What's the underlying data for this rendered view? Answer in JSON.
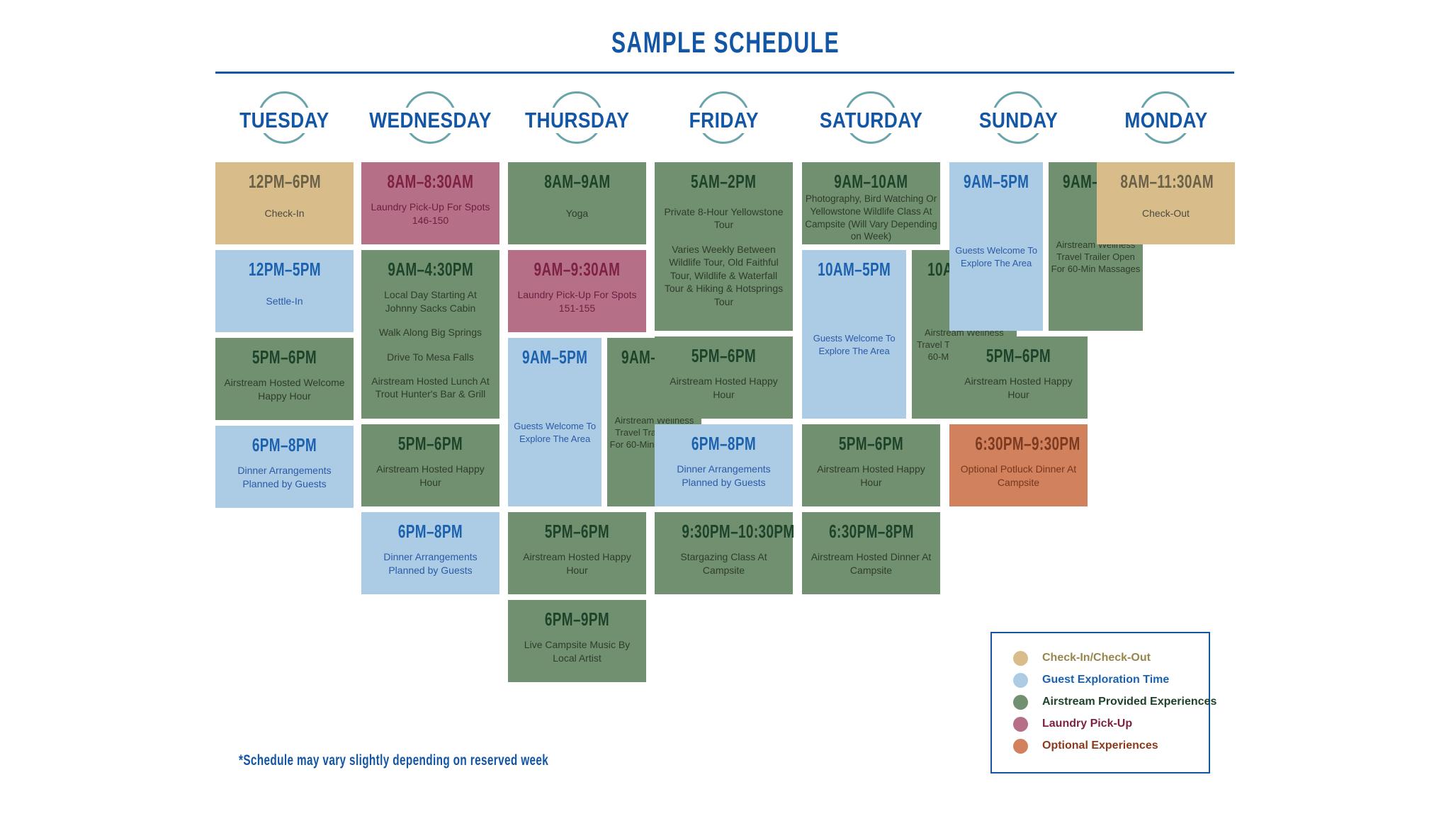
{
  "title": "SAMPLE SCHEDULE",
  "footnote": "*Schedule may vary slightly depending on reserved week",
  "colors": {
    "accent": "#1356a5",
    "day_circle": "#68a4a9",
    "types": {
      "checkin": {
        "bg": "#d8bc8a",
        "time": "#6b6148",
        "body": "#4c4a42",
        "legend": "#97864e"
      },
      "guest": {
        "bg": "#accce6",
        "time": "#1c61ae",
        "body": "#2b5aa7",
        "legend": "#1c61ae"
      },
      "airstream": {
        "bg": "#71906f",
        "time": "#1d432a",
        "body": "#2e3d2d",
        "legend": "#1d432a"
      },
      "laundry": {
        "bg": "#b57087",
        "time": "#7d2145",
        "body": "#6d1e41",
        "legend": "#7d2145"
      },
      "optional": {
        "bg": "#d2815d",
        "time": "#7c3a20",
        "body": "#74371f",
        "legend": "#8a3a1e"
      }
    }
  },
  "legend": {
    "items": [
      {
        "type": "checkin",
        "label": "Check-In/Check-Out"
      },
      {
        "type": "guest",
        "label": "Guest Exploration Time"
      },
      {
        "type": "airstream",
        "label": "Airstream Provided Experiences"
      },
      {
        "type": "laundry",
        "label": "Laundry Pick-Up"
      },
      {
        "type": "optional",
        "label": "Optional Experiences"
      }
    ]
  },
  "days": [
    {
      "label": "TUESDAY",
      "blocks": [
        {
          "time": "12PM–6PM",
          "type": "checkin",
          "size": "s",
          "body": [
            "Check-In"
          ]
        },
        {
          "time": "12PM–5PM",
          "type": "guest",
          "size": "s",
          "body": [
            "Settle-In"
          ]
        },
        {
          "time": "5PM–6PM",
          "type": "airstream",
          "size": "s",
          "body": [
            "Airstream Hosted Welcome Happy Hour"
          ]
        },
        {
          "time": "6PM–8PM",
          "type": "guest",
          "size": "s",
          "body": [
            "Dinner Arrangements Planned by Guests"
          ]
        }
      ]
    },
    {
      "label": "WEDNESDAY",
      "blocks": [
        {
          "time": "8AM–8:30AM",
          "type": "laundry",
          "size": "s",
          "body": [
            "Laundry Pick-Up For Spots 146-150"
          ]
        },
        {
          "time": "9AM–4:30PM",
          "type": "airstream",
          "size": "l",
          "body": [
            "Local Day Starting At Johnny Sacks Cabin",
            "Walk Along Big Springs",
            "Drive To Mesa Falls",
            "Airstream Hosted Lunch At Trout Hunter's Bar & Grill"
          ]
        },
        {
          "time": "5PM–6PM",
          "type": "airstream",
          "size": "s",
          "body": [
            "Airstream Hosted Happy Hour"
          ]
        },
        {
          "time": "6PM–8PM",
          "type": "guest",
          "size": "s",
          "body": [
            "Dinner Arrangements Planned by Guests"
          ]
        }
      ]
    },
    {
      "label": "THURSDAY",
      "blocks": [
        {
          "time": "8AM–9AM",
          "type": "airstream",
          "size": "s",
          "body": [
            "Yoga"
          ]
        },
        {
          "time": "9AM–9:30AM",
          "type": "laundry",
          "size": "s",
          "body": [
            "Laundry Pick-Up For Spots 151-155"
          ]
        },
        {
          "size": "l",
          "split": [
            {
              "time": "9AM–5PM",
              "type": "guest",
              "body": [
                "Guests Welcome To Explore The Area"
              ]
            },
            {
              "time": "9AM–5PM",
              "type": "airstream",
              "body": [
                "Airstream Wellness Travel Trailer Open For 60-Min Massages"
              ]
            }
          ]
        },
        {
          "time": "5PM–6PM",
          "type": "airstream",
          "size": "s",
          "body": [
            "Airstream Hosted Happy Hour"
          ]
        },
        {
          "time": "6PM–9PM",
          "type": "airstream",
          "size": "s",
          "body": [
            "Live Campsite Music By Local Artist"
          ]
        }
      ]
    },
    {
      "label": "FRIDAY",
      "blocks": [
        {
          "time": "5AM–2PM",
          "type": "airstream",
          "size": "l",
          "body": [
            "Private 8-Hour Yellowstone Tour",
            "Varies Weekly Between Wildlife Tour, Old Faithful Tour, Wildlife & Waterfall Tour & Hiking & Hotsprings Tour"
          ]
        },
        {
          "time": "5PM–6PM",
          "type": "airstream",
          "size": "s",
          "body": [
            "Airstream Hosted Happy Hour"
          ]
        },
        {
          "time": "6PM–8PM",
          "type": "guest",
          "size": "s",
          "body": [
            "Dinner Arrangements Planned by Guests"
          ]
        },
        {
          "time": "9:30PM–10:30PM",
          "type": "airstream",
          "size": "s",
          "body": [
            "Stargazing Class At Campsite"
          ]
        }
      ]
    },
    {
      "label": "SATURDAY",
      "blocks": [
        {
          "time": "9AM–10AM",
          "type": "airstream",
          "size": "s",
          "compact": true,
          "body": [
            "Photography, Bird Watching Or Yellowstone Wildlife Class At Campsite (Will Vary Depending on Week)"
          ]
        },
        {
          "size": "l",
          "split": [
            {
              "time": "10AM–5PM",
              "type": "guest",
              "body": [
                "Guests Welcome To Explore The Area"
              ]
            },
            {
              "time": "10AM–5PM",
              "type": "airstream",
              "body": [
                "Airstream Wellness Travel Trailer Open For 60-Min Massages"
              ]
            }
          ]
        },
        {
          "time": "5PM–6PM",
          "type": "airstream",
          "size": "s",
          "body": [
            "Airstream Hosted Happy Hour"
          ]
        },
        {
          "time": "6:30PM–8PM",
          "type": "airstream",
          "size": "s",
          "body": [
            "Airstream Hosted Dinner At Campsite"
          ]
        }
      ]
    },
    {
      "label": "SUNDAY",
      "blocks": [
        {
          "size": "l",
          "split": [
            {
              "time": "9AM–5PM",
              "type": "guest",
              "body": [
                "Guests Welcome To Explore The Area"
              ]
            },
            {
              "time": "9AM–5PM",
              "type": "airstream",
              "body": [
                "Airstream Wellness Travel Trailer Open For 60-Min Massages"
              ]
            }
          ]
        },
        {
          "time": "5PM–6PM",
          "type": "airstream",
          "size": "s",
          "body": [
            "Airstream Hosted Happy Hour"
          ]
        },
        {
          "time": "6:30PM–9:30PM",
          "type": "optional",
          "size": "s",
          "body": [
            "Optional Potluck Dinner At Campsite"
          ]
        }
      ]
    },
    {
      "label": "MONDAY",
      "blocks": [
        {
          "time": "8AM–11:30AM",
          "type": "checkin",
          "size": "s",
          "body": [
            "Check-Out"
          ]
        }
      ]
    }
  ]
}
